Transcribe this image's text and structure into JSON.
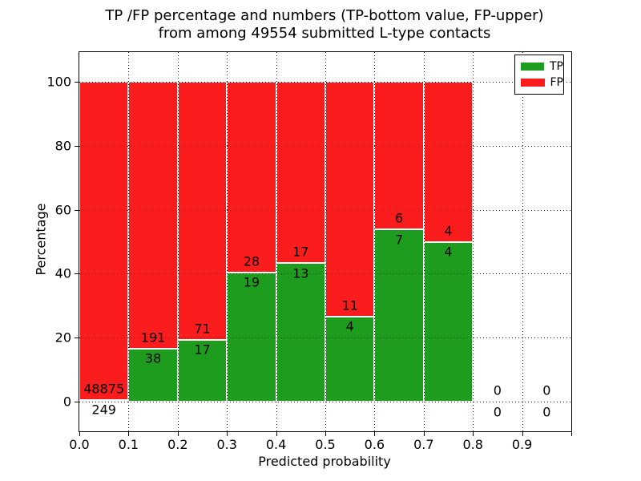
{
  "title": {
    "line1": "TP /FP percentage and numbers (TP-bottom value, FP-upper)",
    "line2": "from among 49554 submitted L-type contacts"
  },
  "axes": {
    "xlabel": "Predicted probability",
    "ylabel": "Percentage",
    "xtick_labels": [
      "0.0",
      "0.1",
      "0.2",
      "0.3",
      "0.4",
      "0.5",
      "0.6",
      "0.7",
      "0.8",
      "0.9"
    ],
    "ytick_labels": [
      "0",
      "20",
      "40",
      "60",
      "80",
      "100"
    ],
    "ytick_values": [
      0,
      20,
      40,
      60,
      80,
      100
    ],
    "xlim": [
      0.0,
      1.0
    ],
    "ylim": [
      -9.3,
      109.3
    ],
    "grid": "dotted-black-on-top"
  },
  "legend": {
    "position": "upper-right",
    "items": [
      {
        "label": "TP",
        "color": "#1e9c1e"
      },
      {
        "label": "FP",
        "color": "#fb1d1d"
      }
    ]
  },
  "chart_data": {
    "type": "bar",
    "stacked": true,
    "orientation": "vertical",
    "bin_edges": [
      0.0,
      0.1,
      0.2,
      0.3,
      0.4,
      0.5,
      0.6,
      0.7,
      0.8,
      0.9,
      1.0
    ],
    "series": [
      {
        "name": "TP",
        "color": "#1e9c1e",
        "counts": [
          249,
          38,
          17,
          19,
          13,
          4,
          7,
          4,
          0,
          0
        ]
      },
      {
        "name": "FP",
        "color": "#fb1d1d",
        "counts": [
          48875,
          191,
          71,
          28,
          17,
          11,
          6,
          4,
          0,
          0
        ]
      },
      {
        "name": "TP-percentage-of-bin",
        "values": [
          0.51,
          16.59,
          19.32,
          40.43,
          43.33,
          26.67,
          53.85,
          50.0,
          0,
          0
        ]
      }
    ],
    "total_contacts": 49554
  },
  "colors": {
    "tp": "#1e9c1e",
    "fp": "#fb1d1d",
    "bar_edge": "#ffffff",
    "grid": "#000000",
    "background": "#ffffff",
    "text": "#000000"
  }
}
